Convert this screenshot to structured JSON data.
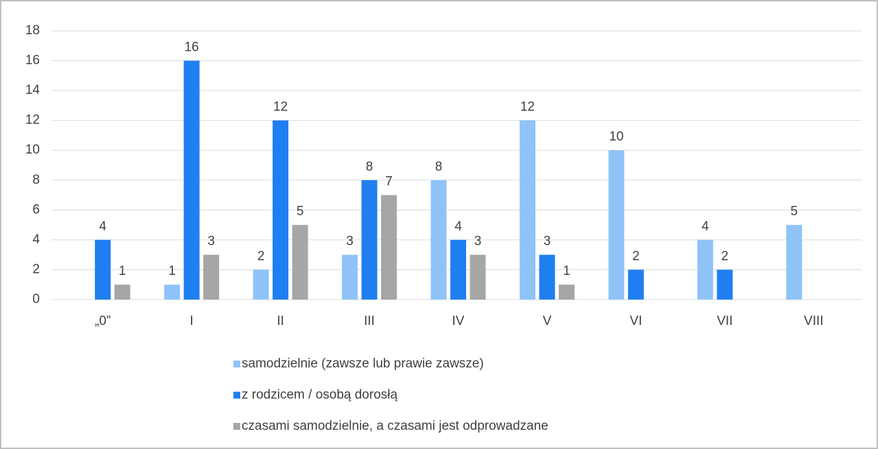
{
  "chart_data": {
    "type": "bar",
    "categories": [
      "„0”",
      "I",
      "II",
      "III",
      "IV",
      "V",
      "VI",
      "VII",
      "VIII"
    ],
    "series": [
      {
        "name": "samodzielnie (zawsze lub prawie zawsze)",
        "color": "#8fc3f7",
        "values": [
          null,
          1,
          2,
          3,
          8,
          12,
          10,
          4,
          5
        ]
      },
      {
        "name": "z rodzicem / osobą dorosłą",
        "color": "#1f7ff0",
        "values": [
          4,
          16,
          12,
          8,
          4,
          3,
          2,
          2,
          null
        ]
      },
      {
        "name": "czasami samodzielnie, a czasami jest odprowadzane",
        "color": "#a6a6a6",
        "values": [
          1,
          3,
          5,
          7,
          3,
          1,
          null,
          null,
          null
        ]
      }
    ],
    "ylim": [
      0,
      18
    ],
    "yticks": [
      0,
      2,
      4,
      6,
      8,
      10,
      12,
      14,
      16,
      18
    ],
    "grid": true,
    "legend": "bottom"
  }
}
